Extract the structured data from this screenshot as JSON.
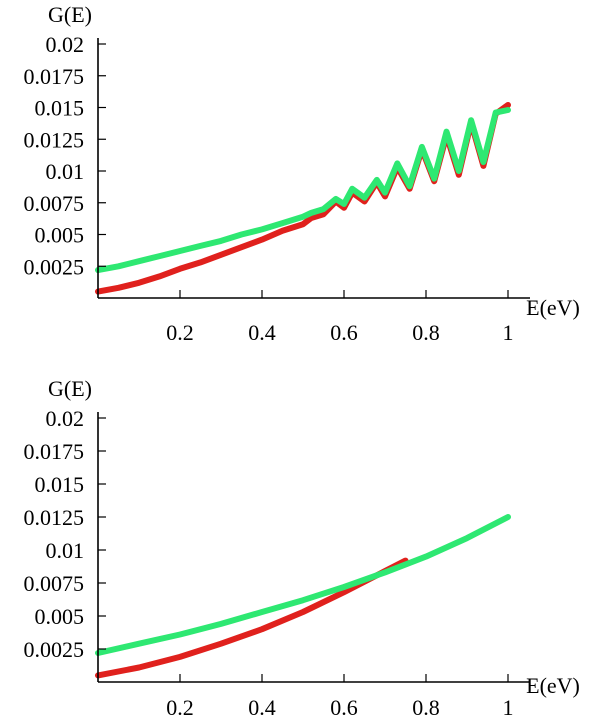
{
  "chart_data": [
    {
      "type": "line",
      "title": "",
      "xlabel": "E(eV)",
      "ylabel": "G(E)",
      "xlim": [
        0,
        1.0
      ],
      "ylim": [
        0,
        0.02
      ],
      "xticks": [
        0.2,
        0.4,
        0.6,
        0.8,
        1.0
      ],
      "xtick_labels": [
        "0.2",
        "0.4",
        "0.6",
        "0.8",
        "1"
      ],
      "yticks": [
        0.0025,
        0.005,
        0.0075,
        0.01,
        0.0125,
        0.015,
        0.0175,
        0.02
      ],
      "ytick_labels": [
        "0.0025",
        "0.005",
        "0.0075",
        "0.01",
        "0.0125",
        "0.015",
        "0.0175",
        "0.02"
      ],
      "series": [
        {
          "color": "#e0211d",
          "x": [
            0.0,
            0.05,
            0.1,
            0.15,
            0.2,
            0.25,
            0.3,
            0.35,
            0.4,
            0.45,
            0.5,
            0.52,
            0.55,
            0.58,
            0.6,
            0.62,
            0.65,
            0.68,
            0.7,
            0.73,
            0.76,
            0.79,
            0.82,
            0.85,
            0.88,
            0.91,
            0.94,
            0.97,
            1.0
          ],
          "values": [
            0.0005,
            0.0008,
            0.0012,
            0.0017,
            0.0023,
            0.0028,
            0.0034,
            0.004,
            0.0046,
            0.0053,
            0.0058,
            0.0063,
            0.0066,
            0.0076,
            0.0071,
            0.0083,
            0.0076,
            0.0091,
            0.008,
            0.0103,
            0.0086,
            0.0117,
            0.0092,
            0.0128,
            0.0097,
            0.0138,
            0.0104,
            0.0145,
            0.0152
          ]
        },
        {
          "color": "#2ee872",
          "x": [
            0.0,
            0.05,
            0.1,
            0.15,
            0.2,
            0.25,
            0.3,
            0.35,
            0.4,
            0.45,
            0.5,
            0.52,
            0.55,
            0.58,
            0.6,
            0.62,
            0.65,
            0.68,
            0.7,
            0.73,
            0.76,
            0.79,
            0.82,
            0.85,
            0.88,
            0.91,
            0.94,
            0.97,
            1.0
          ],
          "values": [
            0.0022,
            0.0025,
            0.0029,
            0.0033,
            0.0037,
            0.0041,
            0.0045,
            0.005,
            0.0054,
            0.0059,
            0.0064,
            0.0067,
            0.007,
            0.0078,
            0.0074,
            0.0086,
            0.0079,
            0.0093,
            0.0083,
            0.0106,
            0.0088,
            0.0119,
            0.0094,
            0.0131,
            0.01,
            0.014,
            0.0107,
            0.0146,
            0.0148
          ]
        }
      ]
    },
    {
      "type": "line",
      "title": "",
      "xlabel": "E(eV)",
      "ylabel": "G(E)",
      "xlim": [
        0,
        1.0
      ],
      "ylim": [
        0,
        0.02
      ],
      "xticks": [
        0.2,
        0.4,
        0.6,
        0.8,
        1.0
      ],
      "xtick_labels": [
        "0.2",
        "0.4",
        "0.6",
        "0.8",
        "1"
      ],
      "yticks": [
        0.0025,
        0.005,
        0.0075,
        0.01,
        0.0125,
        0.015,
        0.0175,
        0.02
      ],
      "ytick_labels": [
        "0.0025",
        "0.005",
        "0.0075",
        "0.01",
        "0.0125",
        "0.015",
        "0.0175",
        "0.02"
      ],
      "series": [
        {
          "color": "#e0211d",
          "x": [
            0.0,
            0.1,
            0.2,
            0.3,
            0.4,
            0.5,
            0.6,
            0.7,
            0.75
          ],
          "values": [
            0.0005,
            0.0011,
            0.0019,
            0.0029,
            0.004,
            0.0053,
            0.0068,
            0.0084,
            0.0092
          ]
        },
        {
          "color": "#2ee872",
          "x": [
            0.0,
            0.1,
            0.2,
            0.3,
            0.4,
            0.5,
            0.6,
            0.7,
            0.8,
            0.9,
            1.0
          ],
          "values": [
            0.0022,
            0.0029,
            0.0036,
            0.0044,
            0.0053,
            0.0062,
            0.0072,
            0.0083,
            0.0095,
            0.0109,
            0.0125
          ]
        }
      ]
    }
  ]
}
